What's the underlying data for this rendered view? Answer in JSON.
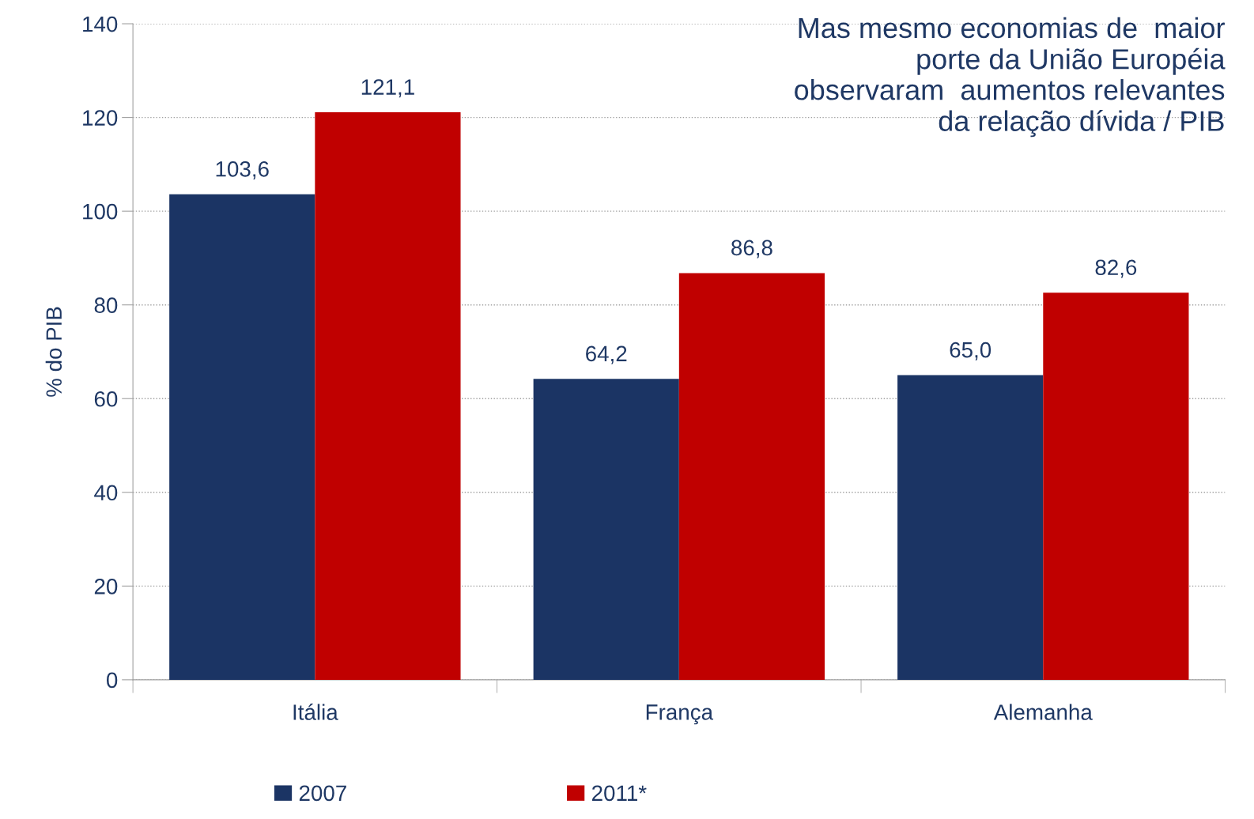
{
  "chart_data": {
    "type": "bar",
    "title": "Mas mesmo economias de  maior\nporte da União Européia\nobservaram  aumentos relevantes\nda relação dívida / PIB",
    "ylabel": "% do PIB",
    "categories": [
      "Itália",
      "França",
      "Alemanha"
    ],
    "series": [
      {
        "name": "2007",
        "color": "#1b3464",
        "values": [
          103.6,
          64.2,
          65.0
        ],
        "value_labels": [
          "103,6",
          "64,2",
          "65,0"
        ]
      },
      {
        "name": "2011*",
        "color": "#c00000",
        "values": [
          121.1,
          86.8,
          82.6
        ],
        "value_labels": [
          "121,1",
          "86,8",
          "82,6"
        ]
      }
    ],
    "ylim": [
      0,
      140
    ],
    "yticks": [
      0,
      20,
      40,
      60,
      80,
      100,
      120,
      140
    ],
    "grid": "y",
    "legend": "bottom"
  }
}
